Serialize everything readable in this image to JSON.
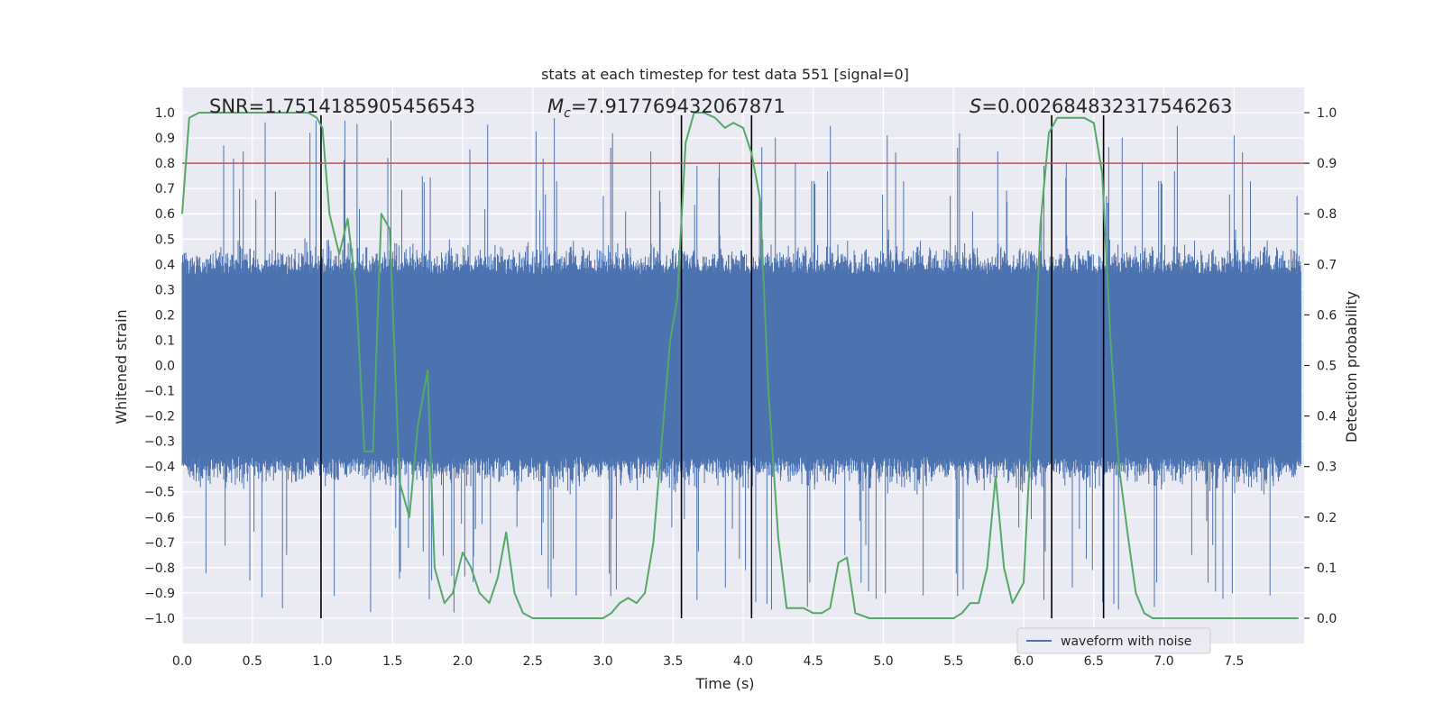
{
  "chart_data": {
    "type": "line",
    "title": "stats at each timestep for test data 551 [signal=0]",
    "xlabel": "Time (s)",
    "ylabel": "Whitened strain",
    "y2label": "Detection probability",
    "xlim": [
      0.0,
      8.0
    ],
    "ylim": [
      -1.1,
      1.1
    ],
    "y2lim": [
      -0.05,
      1.05
    ],
    "xticks": [
      "0.0",
      "0.5",
      "1.0",
      "1.5",
      "2.0",
      "2.5",
      "3.0",
      "3.5",
      "4.0",
      "4.5",
      "5.0",
      "5.5",
      "6.0",
      "6.5",
      "7.0",
      "7.5"
    ],
    "yticks": [
      "−1.0",
      "−0.9",
      "−0.8",
      "−0.7",
      "−0.6",
      "−0.5",
      "−0.4",
      "−0.3",
      "−0.2",
      "−0.1",
      "0.0",
      "0.1",
      "0.2",
      "0.3",
      "0.4",
      "0.5",
      "0.6",
      "0.7",
      "0.8",
      "0.9",
      "1.0"
    ],
    "y2ticks": [
      "0.0",
      "0.1",
      "0.2",
      "0.3",
      "0.4",
      "0.5",
      "0.6",
      "0.7",
      "0.8",
      "0.9",
      "1.0"
    ],
    "grid": true,
    "legend_position": "bottom-right",
    "legend": [
      "waveform with noise"
    ],
    "annotations": {
      "snr": "SNR=1.7514185905456543",
      "mc_symbol": "M",
      "mc_sub": "c",
      "mc_value": "=7.917769432067871",
      "s_symbol": "S",
      "s_value": "=0.002684832317546263"
    },
    "threshold": {
      "y2": 0.9,
      "color": "#c44e52"
    },
    "vertical_lines": [
      0.99,
      3.56,
      4.06,
      6.2,
      6.57
    ],
    "waveform": {
      "name": "waveform with noise",
      "color": "#4c72b0",
      "note_range": [
        -1.0,
        1.0
      ]
    },
    "probability": {
      "color": "#55a868",
      "x": [
        0.0,
        0.05,
        0.12,
        0.2,
        0.3,
        0.4,
        0.5,
        0.6,
        0.7,
        0.8,
        0.9,
        0.96,
        1.0,
        1.05,
        1.12,
        1.18,
        1.24,
        1.3,
        1.36,
        1.42,
        1.48,
        1.55,
        1.62,
        1.68,
        1.75,
        1.8,
        1.87,
        1.93,
        2.0,
        2.06,
        2.12,
        2.19,
        2.25,
        2.31,
        2.37,
        2.43,
        2.5,
        2.6,
        2.7,
        2.8,
        2.9,
        3.0,
        3.06,
        3.12,
        3.18,
        3.24,
        3.3,
        3.36,
        3.42,
        3.48,
        3.53,
        3.59,
        3.65,
        3.72,
        3.8,
        3.87,
        3.93,
        4.0,
        4.06,
        4.12,
        4.18,
        4.25,
        4.31,
        4.37,
        4.43,
        4.5,
        4.56,
        4.62,
        4.68,
        4.74,
        4.8,
        4.9,
        5.0,
        5.1,
        5.2,
        5.3,
        5.4,
        5.5,
        5.56,
        5.62,
        5.68,
        5.74,
        5.8,
        5.86,
        5.92,
        6.0,
        6.06,
        6.12,
        6.18,
        6.24,
        6.3,
        6.36,
        6.43,
        6.5,
        6.56,
        6.62,
        6.68,
        6.75,
        6.8,
        6.86,
        6.92,
        7.0,
        7.1,
        7.2,
        7.3,
        7.4,
        7.5,
        7.6,
        7.7,
        7.8,
        7.9,
        7.96
      ],
      "y": [
        0.8,
        0.99,
        1.0,
        1.0,
        1.0,
        1.0,
        1.0,
        1.0,
        1.0,
        1.0,
        1.0,
        0.99,
        0.97,
        0.8,
        0.72,
        0.79,
        0.65,
        0.33,
        0.33,
        0.8,
        0.77,
        0.27,
        0.2,
        0.38,
        0.49,
        0.1,
        0.03,
        0.05,
        0.13,
        0.1,
        0.05,
        0.03,
        0.08,
        0.17,
        0.05,
        0.01,
        0.0,
        0.0,
        0.0,
        0.0,
        0.0,
        0.0,
        0.01,
        0.03,
        0.04,
        0.03,
        0.05,
        0.15,
        0.35,
        0.55,
        0.63,
        0.94,
        1.0,
        1.0,
        0.99,
        0.97,
        0.98,
        0.97,
        0.92,
        0.83,
        0.45,
        0.16,
        0.02,
        0.02,
        0.02,
        0.01,
        0.01,
        0.02,
        0.11,
        0.12,
        0.01,
        0.0,
        0.0,
        0.0,
        0.0,
        0.0,
        0.0,
        0.0,
        0.01,
        0.03,
        0.03,
        0.1,
        0.28,
        0.1,
        0.03,
        0.07,
        0.4,
        0.78,
        0.96,
        0.99,
        0.99,
        0.99,
        0.99,
        0.98,
        0.88,
        0.55,
        0.3,
        0.15,
        0.05,
        0.01,
        0.0,
        0.0,
        0.0,
        0.0,
        0.0,
        0.0,
        0.0,
        0.0,
        0.0,
        0.0,
        0.0,
        0.0
      ]
    }
  }
}
